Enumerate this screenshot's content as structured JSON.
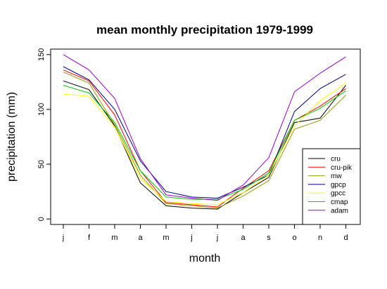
{
  "chart_data": {
    "type": "line",
    "title": "mean monthly precipitation 1979-1999",
    "xlabel": "month",
    "ylabel": "precipitation (mm)",
    "categories": [
      "j",
      "f",
      "m",
      "a",
      "m",
      "j",
      "j",
      "a",
      "s",
      "o",
      "n",
      "d"
    ],
    "ylim": [
      -5,
      155
    ],
    "yticks": [
      0,
      50,
      100,
      150
    ],
    "grid": false,
    "legend": "bottom-right",
    "series": [
      {
        "name": "cru",
        "color": "#000000",
        "values": [
          126,
          118,
          85,
          33,
          12,
          10,
          9,
          24,
          38,
          88,
          92,
          122
        ]
      },
      {
        "name": "cru-pik",
        "color": "#ff0000",
        "values": [
          136,
          126,
          95,
          44,
          15,
          13,
          11,
          28,
          44,
          90,
          103,
          119
        ]
      },
      {
        "name": "mw",
        "color": "#999900",
        "values": [
          134,
          124,
          86,
          40,
          14,
          12,
          10,
          21,
          35,
          82,
          90,
          113
        ]
      },
      {
        "name": "gpcp",
        "color": "#000080",
        "values": [
          139,
          127,
          100,
          53,
          25,
          20,
          19,
          29,
          40,
          98,
          119,
          132
        ]
      },
      {
        "name": "gpcc",
        "color": "#ffff00",
        "values": [
          114,
          112,
          84,
          37,
          16,
          14,
          13,
          24,
          40,
          85,
          108,
          124
        ]
      },
      {
        "name": "cmap",
        "color": "#00cc00",
        "values": [
          122,
          115,
          88,
          44,
          20,
          18,
          18,
          27,
          42,
          90,
          101,
          117
        ]
      },
      {
        "name": "adam",
        "color": "#9900cc",
        "values": [
          150,
          136,
          110,
          55,
          22,
          19,
          17,
          31,
          56,
          116,
          133,
          148
        ]
      }
    ]
  }
}
